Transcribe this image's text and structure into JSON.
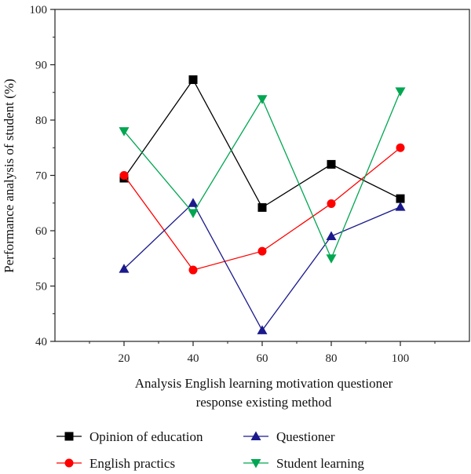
{
  "chart_data": {
    "type": "line",
    "x": [
      20,
      40,
      60,
      80,
      100
    ],
    "xlim": [
      0,
      120
    ],
    "ylim": [
      40,
      100
    ],
    "xticks": [
      20,
      40,
      60,
      80,
      100
    ],
    "yticks": [
      40,
      50,
      60,
      70,
      80,
      90,
      100
    ],
    "xlabel_lines": [
      "Analysis English learning motivation questioner",
      "response existing method"
    ],
    "ylabel": "Performance analysis of student (%)",
    "grid": false,
    "legend_position": "bottom",
    "series": [
      {
        "name": "Opinion of education",
        "color": "#000000",
        "marker": "square",
        "values": [
          69.5,
          87.3,
          64.2,
          72.0,
          65.8
        ]
      },
      {
        "name": "English practics",
        "color": "#ff0000",
        "marker": "circle",
        "values": [
          70.0,
          52.9,
          56.3,
          64.9,
          75.0
        ]
      },
      {
        "name": "Questioner",
        "color": "#1a1a8c",
        "marker": "triangle-up",
        "values": [
          53.1,
          65.0,
          42.0,
          59.0,
          64.3
        ]
      },
      {
        "name": "Student learning",
        "color": "#00a651",
        "marker": "triangle-down",
        "values": [
          78.0,
          63.2,
          83.8,
          55.0,
          85.2
        ]
      }
    ]
  }
}
